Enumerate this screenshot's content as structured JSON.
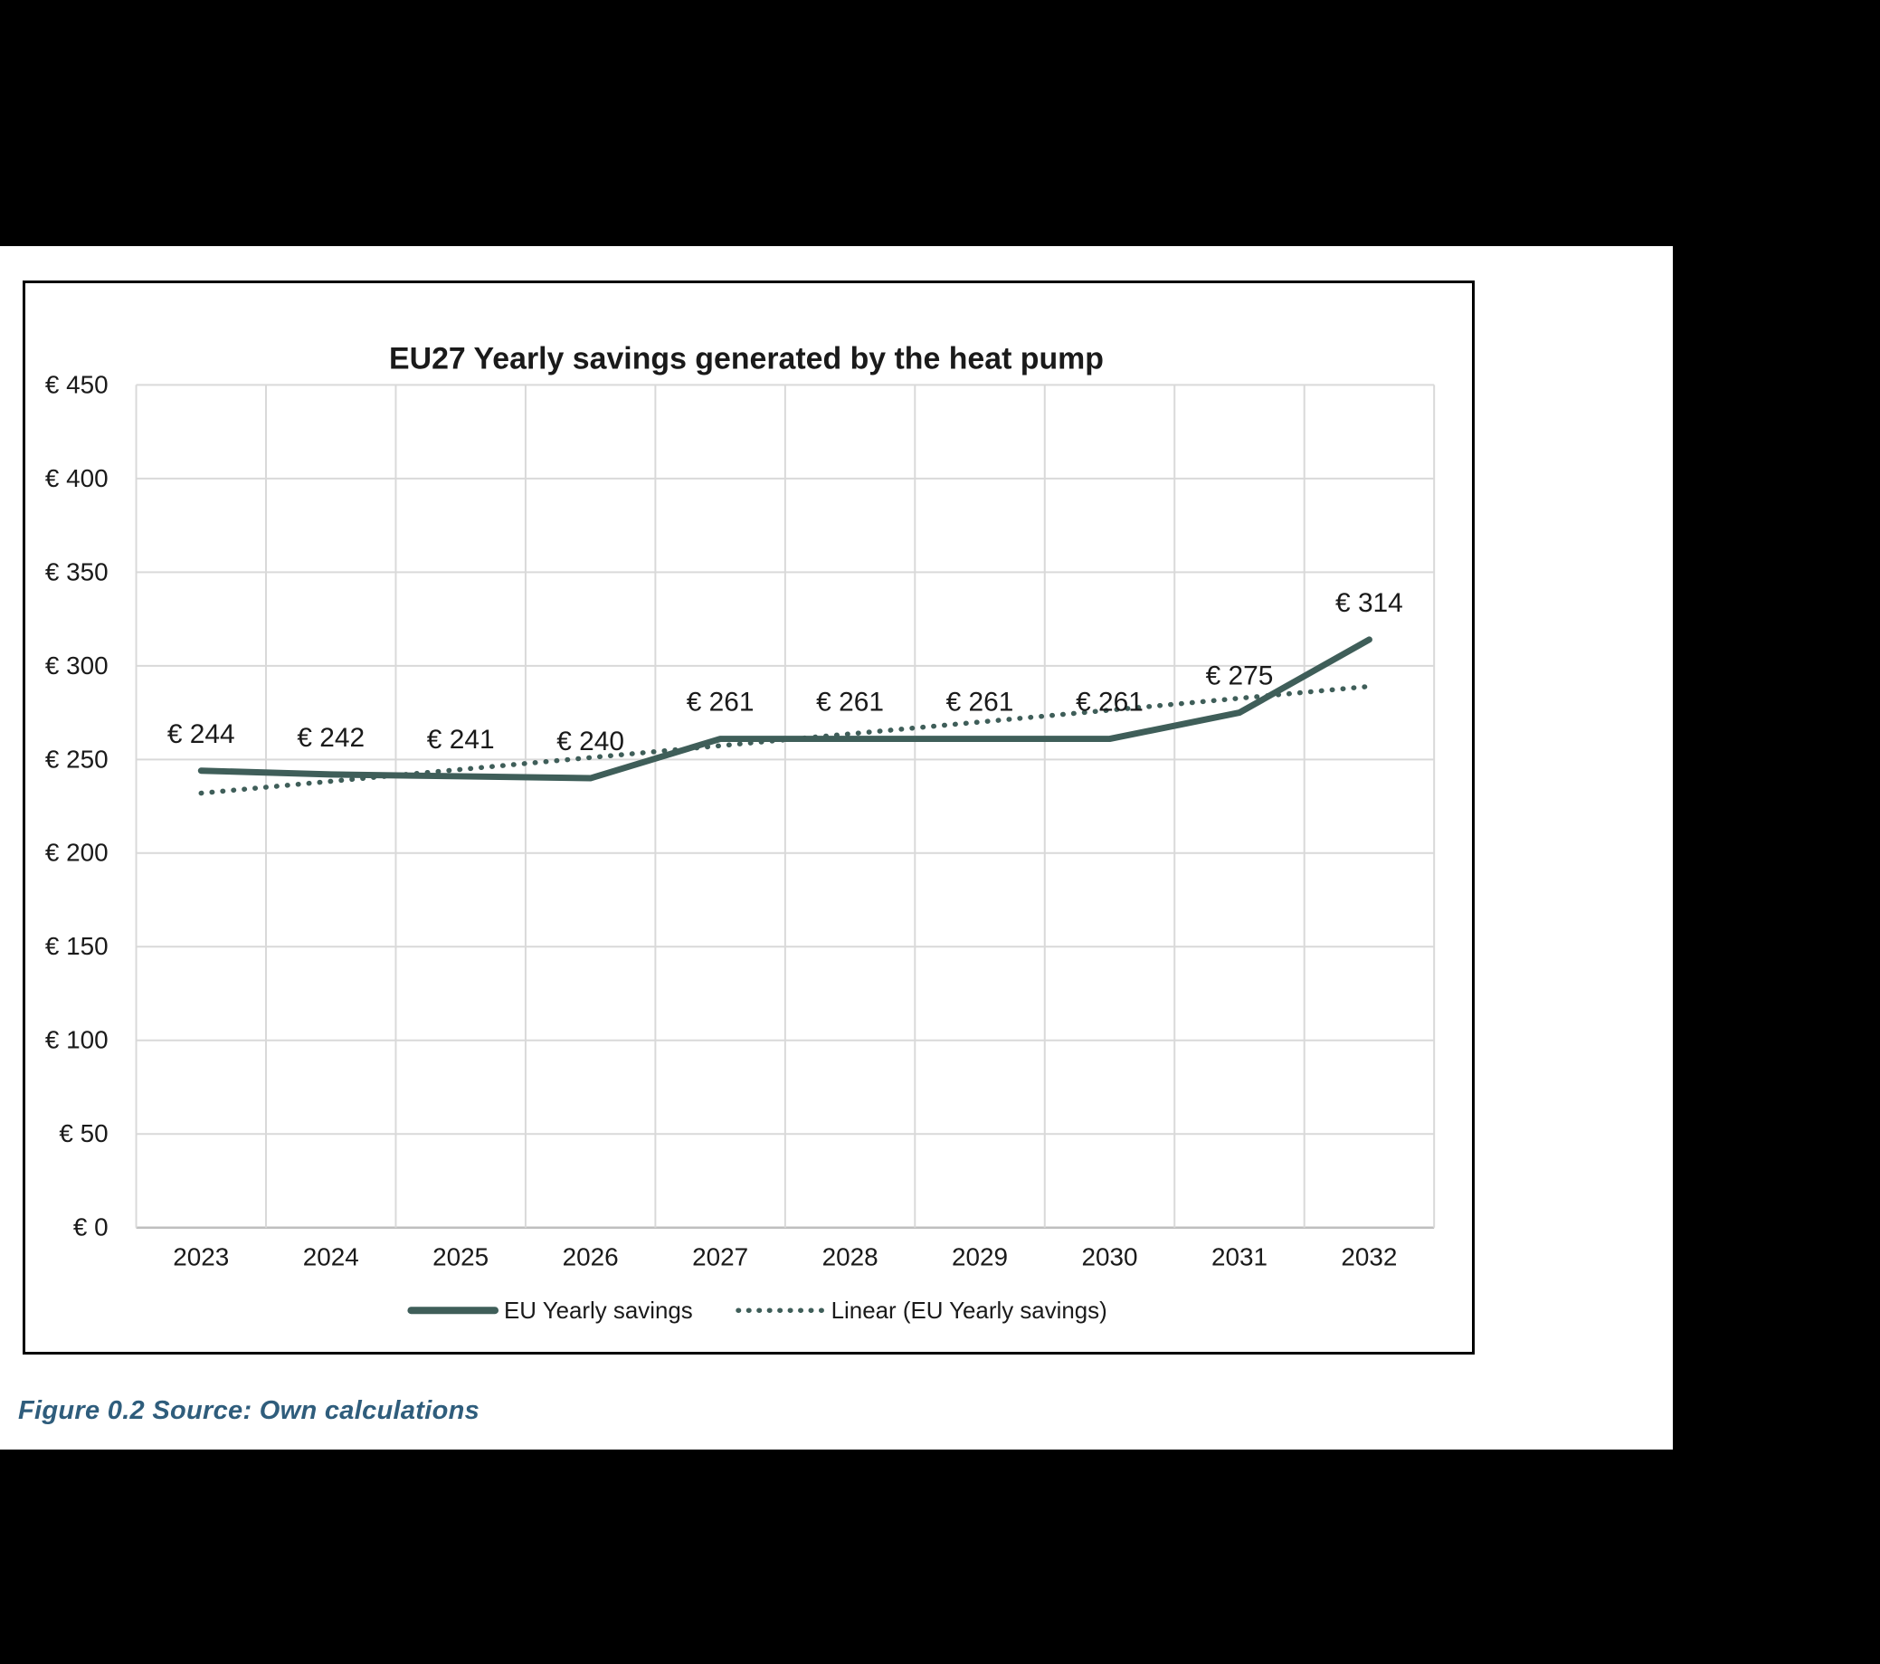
{
  "page": {
    "caption": {
      "text": "Figure 0.2 Source: Own calculations",
      "color": "#2F5D7C"
    }
  },
  "chart_data": {
    "type": "line",
    "title": "EU27 Yearly savings generated by the heat pump",
    "categories": [
      "2023",
      "2024",
      "2025",
      "2026",
      "2027",
      "2028",
      "2029",
      "2030",
      "2031",
      "2032"
    ],
    "series": [
      {
        "name": "EU Yearly savings",
        "style": "solid",
        "values": [
          244,
          242,
          241,
          240,
          261,
          261,
          261,
          261,
          275,
          314
        ]
      },
      {
        "name": "Linear (EU Yearly savings)",
        "style": "dotted-trendline",
        "trend_endpoints": [
          232,
          289
        ]
      }
    ],
    "data_labels": [
      "€ 244",
      "€ 242",
      "€ 241",
      "€ 240",
      "€ 261",
      "€ 261",
      "€ 261",
      "€ 261",
      "€ 275",
      "€ 314"
    ],
    "ytick_labels": [
      "€ 0",
      "€ 50",
      "€ 100",
      "€ 150",
      "€ 200",
      "€ 250",
      "€ 300",
      "€ 350",
      "€ 400",
      "€ 450"
    ],
    "ylim": [
      0,
      450
    ],
    "ytick_step": 50,
    "grid": true,
    "legend_position": "bottom",
    "colors": {
      "series": "#3F5E59",
      "gridline": "#D9D9D9",
      "axis_line": "#BFBFBF",
      "text": "#1A1A1A",
      "frame_border": "#000000"
    }
  }
}
